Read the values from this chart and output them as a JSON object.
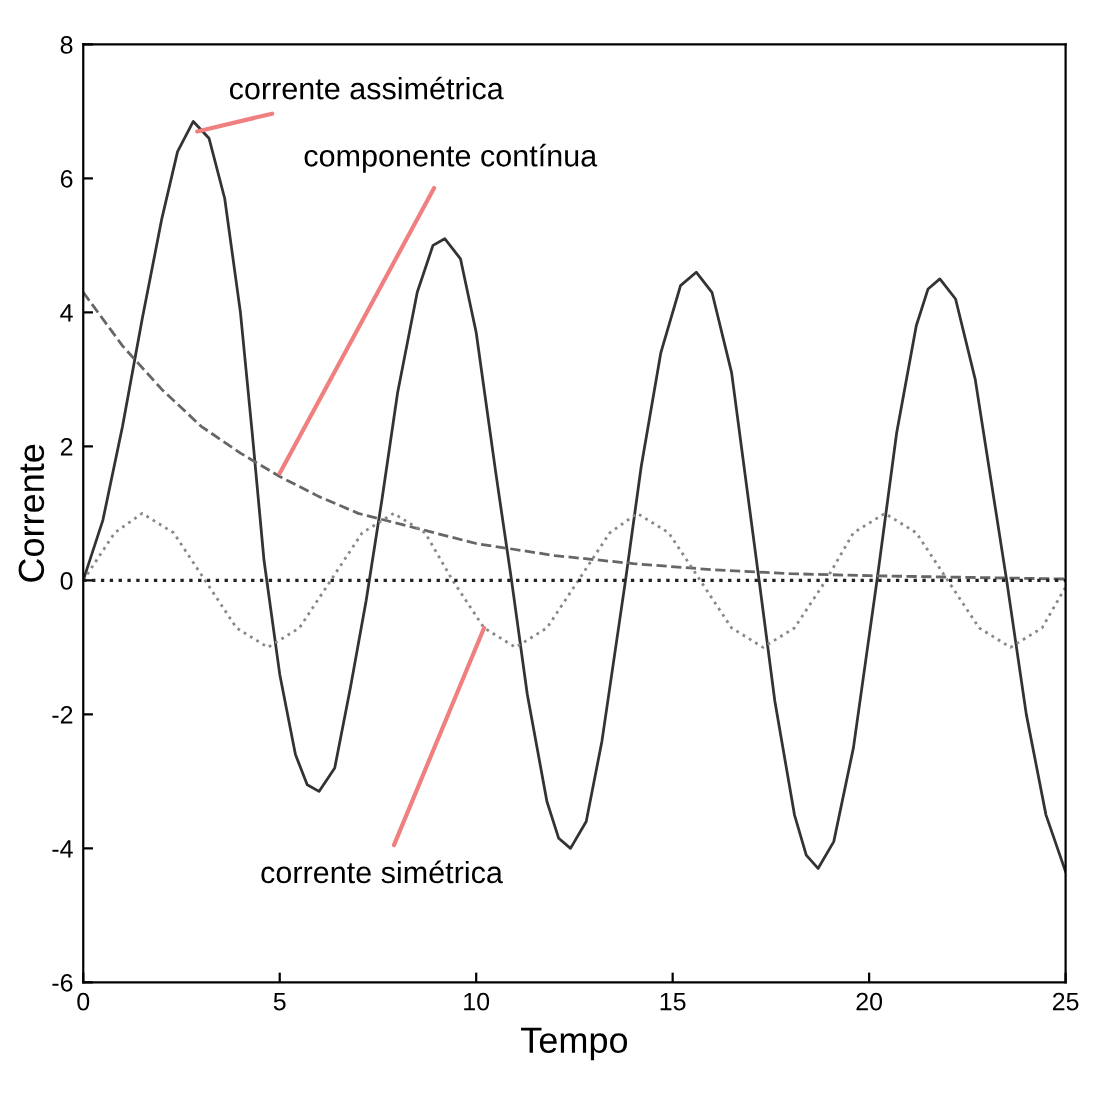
{
  "chart_data": {
    "type": "line",
    "xlabel": "Tempo",
    "ylabel": "Corrente",
    "xlim": [
      0,
      25
    ],
    "xticks": [
      0,
      5,
      10,
      15,
      20,
      25
    ],
    "ylim": [
      -6,
      8
    ],
    "yticks": [
      -6,
      -4,
      -2,
      0,
      2,
      4,
      6,
      8
    ],
    "grid": false,
    "legend": false,
    "marker": "none",
    "series": [
      {
        "color": "#333333",
        "line_style": "solid",
        "x": [
          0,
          0.5,
          1,
          1.5,
          2,
          2.4,
          2.8,
          3.2,
          3.6,
          4.0,
          4.3,
          4.6,
          5.0,
          5.4,
          5.7,
          6.0,
          6.4,
          6.8,
          7.2,
          7.6,
          8.0,
          8.5,
          8.9,
          9.2,
          9.6,
          10.0,
          10.5,
          10.9,
          11.3,
          11.8,
          12.1,
          12.4,
          12.8,
          13.2,
          13.8,
          14.2,
          14.7,
          15.2,
          15.6,
          16.0,
          16.5,
          17.2,
          17.6,
          18.1,
          18.4,
          18.7,
          19.1,
          19.6,
          20.2,
          20.7,
          21.2,
          21.5,
          21.8,
          22.2,
          22.7,
          23.5,
          24.0,
          24.5,
          25
        ],
        "values": [
          0,
          0.9,
          2.3,
          3.9,
          5.4,
          6.4,
          6.85,
          6.6,
          5.7,
          4.0,
          2.2,
          0.3,
          -1.4,
          -2.6,
          -3.05,
          -3.15,
          -2.8,
          -1.6,
          -0.3,
          1.2,
          2.8,
          4.3,
          5.0,
          5.1,
          4.8,
          3.7,
          1.6,
          0,
          -1.7,
          -3.3,
          -3.85,
          -4.0,
          -3.6,
          -2.4,
          0,
          1.7,
          3.4,
          4.4,
          4.6,
          4.3,
          3.1,
          0,
          -1.8,
          -3.5,
          -4.1,
          -4.3,
          -3.9,
          -2.5,
          0,
          2.2,
          3.8,
          4.35,
          4.5,
          4.2,
          3.0,
          0,
          -2.0,
          -3.5,
          -4.35
        ]
      },
      {
        "color": "#666666",
        "line_style": "dashed",
        "x": [
          0,
          1,
          2,
          3,
          4,
          5,
          6,
          7,
          8,
          9,
          10,
          12,
          14,
          16,
          18,
          20,
          22,
          25
        ],
        "values": [
          4.3,
          3.5,
          2.85,
          2.3,
          1.9,
          1.55,
          1.25,
          1.0,
          0.85,
          0.7,
          0.55,
          0.37,
          0.25,
          0.16,
          0.1,
          0.07,
          0.05,
          0.02
        ]
      },
      {
        "color": "#888888",
        "line_style": "dotted",
        "x": [
          0,
          0.8,
          1.5,
          2.3,
          3.1,
          3.9,
          4.7,
          5.5,
          6.3,
          7.1,
          7.9,
          8.7,
          9.4,
          10.2,
          11.0,
          11.8,
          12.6,
          13.4,
          14.1,
          14.9,
          15.7,
          16.5,
          17.3,
          18.1,
          18.9,
          19.6,
          20.4,
          21.2,
          22.0,
          22.8,
          23.6,
          24.4,
          25
        ],
        "values": [
          0,
          0.71,
          1,
          0.71,
          0,
          -0.71,
          -1,
          -0.71,
          0,
          0.71,
          1,
          0.71,
          0,
          -0.71,
          -1,
          -0.71,
          0,
          0.71,
          1,
          0.71,
          0,
          -0.71,
          -1,
          -0.71,
          0,
          0.71,
          1,
          0.71,
          0,
          -0.71,
          -1,
          -0.71,
          -0.1
        ]
      }
    ],
    "ref_lines": [
      {
        "axis": "y",
        "value": 0,
        "color": "#222222",
        "line_style": "dotted"
      }
    ],
    "annotations": [
      {
        "text": "corrente assimétrica",
        "x": 2.9,
        "y": 6.7
      },
      {
        "text": "componente contínua",
        "x": 5.0,
        "y": 1.6
      },
      {
        "text": "corrente simétrica",
        "x": 10.2,
        "y": -0.71
      }
    ]
  }
}
